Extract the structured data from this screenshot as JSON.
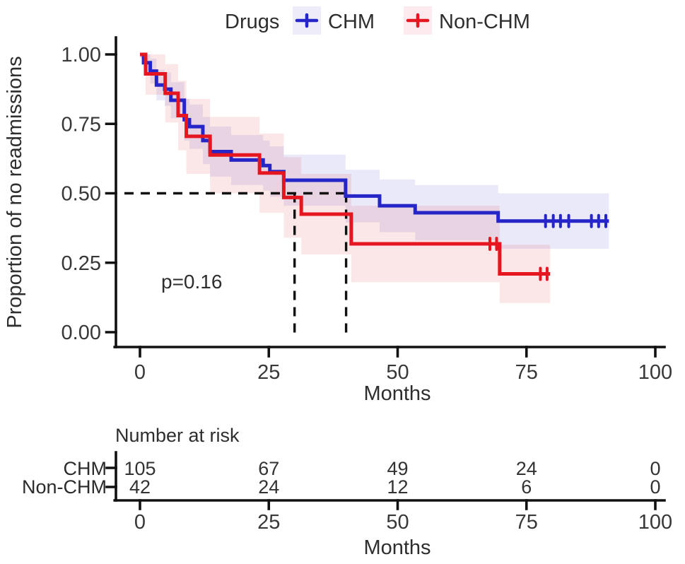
{
  "chart_data": {
    "type": "line",
    "subtype": "kaplan-meier-survival",
    "legend_title": "Drugs",
    "xlabel": "Months",
    "ylabel": "Proportion of no readmissions",
    "xlim": [
      0,
      100
    ],
    "ylim": [
      0.0,
      1.0
    ],
    "xticks": [
      0,
      25,
      50,
      75,
      100
    ],
    "yticks": [
      0,
      0.25,
      0.5,
      0.75,
      1
    ],
    "grid": "off",
    "legend_position": "top",
    "pvalue_label": "p=0.16",
    "median_line": {
      "survival": 0.5,
      "times": [
        30,
        40
      ]
    },
    "series": [
      {
        "name": "CHM",
        "color": "#2525c8",
        "label_color": "#4646d4",
        "key_bg": "#edecf8",
        "band_opacity": 0.1,
        "steps": [
          [
            0,
            1.0,
            0.99,
            1.0
          ],
          [
            0.7,
            0.97,
            0.935,
            1.0
          ],
          [
            2,
            0.94,
            0.895,
            0.985
          ],
          [
            3.2,
            0.89,
            0.835,
            0.945
          ],
          [
            4.8,
            0.875,
            0.815,
            0.935
          ],
          [
            6,
            0.835,
            0.77,
            0.9
          ],
          [
            8.6,
            0.765,
            0.69,
            0.84
          ],
          [
            9.6,
            0.74,
            0.66,
            0.82
          ],
          [
            12.2,
            0.69,
            0.605,
            0.775
          ],
          [
            13.6,
            0.65,
            0.56,
            0.74
          ],
          [
            17.7,
            0.62,
            0.53,
            0.71
          ],
          [
            23.9,
            0.6,
            0.51,
            0.69
          ],
          [
            25.2,
            0.578,
            0.487,
            0.669
          ],
          [
            27.9,
            0.547,
            0.455,
            0.639
          ],
          [
            39.9,
            0.49,
            0.395,
            0.585
          ],
          [
            46.5,
            0.455,
            0.36,
            0.55
          ],
          [
            53.4,
            0.43,
            0.33,
            0.53
          ],
          [
            69.5,
            0.4,
            0.3,
            0.5
          ]
        ],
        "end": 91,
        "censors": [
          [
            78.7,
            0.4
          ],
          [
            80.2,
            0.4
          ],
          [
            81.6,
            0.4
          ],
          [
            83.2,
            0.4
          ],
          [
            87.6,
            0.4
          ],
          [
            89.0,
            0.4
          ],
          [
            90.4,
            0.4
          ]
        ],
        "n_at_risk": [
          105,
          67,
          49,
          24,
          0
        ]
      },
      {
        "name": "Non-CHM",
        "color": "#e5161f",
        "label_color": "#e8404d",
        "key_bg": "#fdeaee",
        "band_opacity": 0.1,
        "steps": [
          [
            0,
            1.0,
            0.985,
            1.0
          ],
          [
            1.1,
            0.93,
            0.855,
            1.0
          ],
          [
            4.9,
            0.86,
            0.755,
            0.965
          ],
          [
            7.4,
            0.78,
            0.655,
            0.905
          ],
          [
            9.0,
            0.705,
            0.57,
            0.84
          ],
          [
            13.6,
            0.638,
            0.5,
            0.775
          ],
          [
            23.2,
            0.573,
            0.43,
            0.715
          ],
          [
            27.9,
            0.485,
            0.34,
            0.63
          ],
          [
            31.3,
            0.425,
            0.28,
            0.57
          ],
          [
            41,
            0.318,
            0.18,
            0.455
          ],
          [
            69.8,
            0.21,
            0.105,
            0.315
          ]
        ],
        "end": 79.6,
        "censors": [
          [
            67.9,
            0.318
          ],
          [
            69.2,
            0.318
          ],
          [
            77.7,
            0.21
          ],
          [
            79.0,
            0.21
          ]
        ],
        "n_at_risk": [
          42,
          24,
          12,
          6,
          0
        ]
      }
    ],
    "risk_table": {
      "title": "Number at risk",
      "xlabel": "Months",
      "xticks": [
        0,
        25,
        50,
        75,
        100
      ]
    }
  }
}
